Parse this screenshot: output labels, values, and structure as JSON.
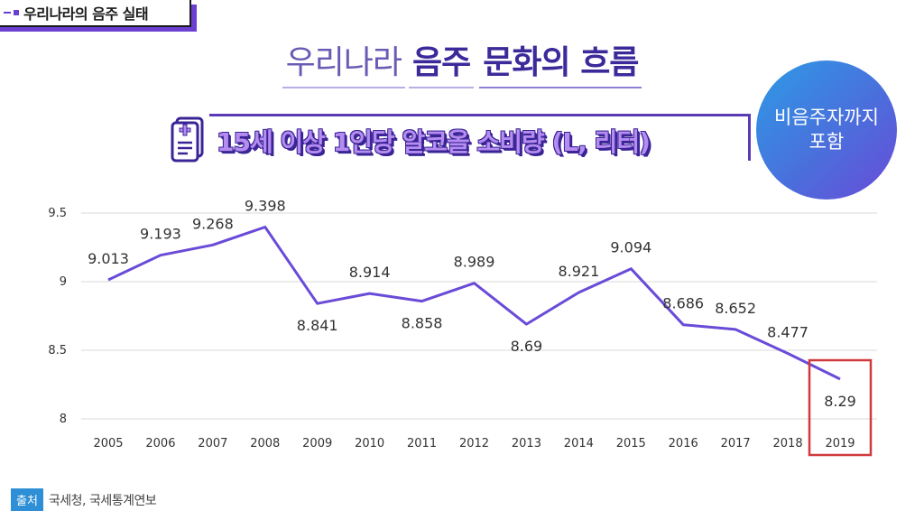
{
  "section_tag": "우리나라의 음주 실태",
  "main_title": {
    "part1": "우리나라",
    "part2": "음주",
    "part3": "문화의 흐름"
  },
  "subtitle": "15세 이상 1인당 알코올 소비량 (L, 리터)",
  "badge": {
    "line1": "비음주자까지",
    "line2": "포함"
  },
  "source": {
    "label": "출처",
    "text": "국세청, 국세통계연보"
  },
  "colors": {
    "line": "#6a4bd8",
    "highlight_box": "#d0393b",
    "grid": "#d9d9d9"
  },
  "chart_data": {
    "type": "line",
    "title": "",
    "xlabel": "",
    "ylabel": "",
    "x": [
      "2005",
      "2006",
      "2007",
      "2008",
      "2009",
      "2010",
      "2011",
      "2012",
      "2013",
      "2014",
      "2015",
      "2016",
      "2017",
      "2018",
      "2019"
    ],
    "values": [
      9.013,
      9.193,
      9.268,
      9.398,
      8.841,
      8.914,
      8.858,
      8.989,
      8.69,
      8.921,
      9.094,
      8.686,
      8.652,
      8.477,
      8.29
    ],
    "data_labels": [
      "9.013",
      "9.193",
      "9.268",
      "9.398",
      "8.841",
      "8.914",
      "8.858",
      "8.989",
      "8.69",
      "8.921",
      "9.094",
      "8.686",
      "8.652",
      "8.477",
      "8.29"
    ],
    "yticks": [
      8,
      8.5,
      9,
      9.5
    ],
    "ytick_labels": [
      "8",
      "8.5",
      "9",
      "9.5"
    ],
    "ylim": [
      8,
      9.5
    ],
    "grid": true,
    "legend": "none",
    "highlight": "2019"
  }
}
